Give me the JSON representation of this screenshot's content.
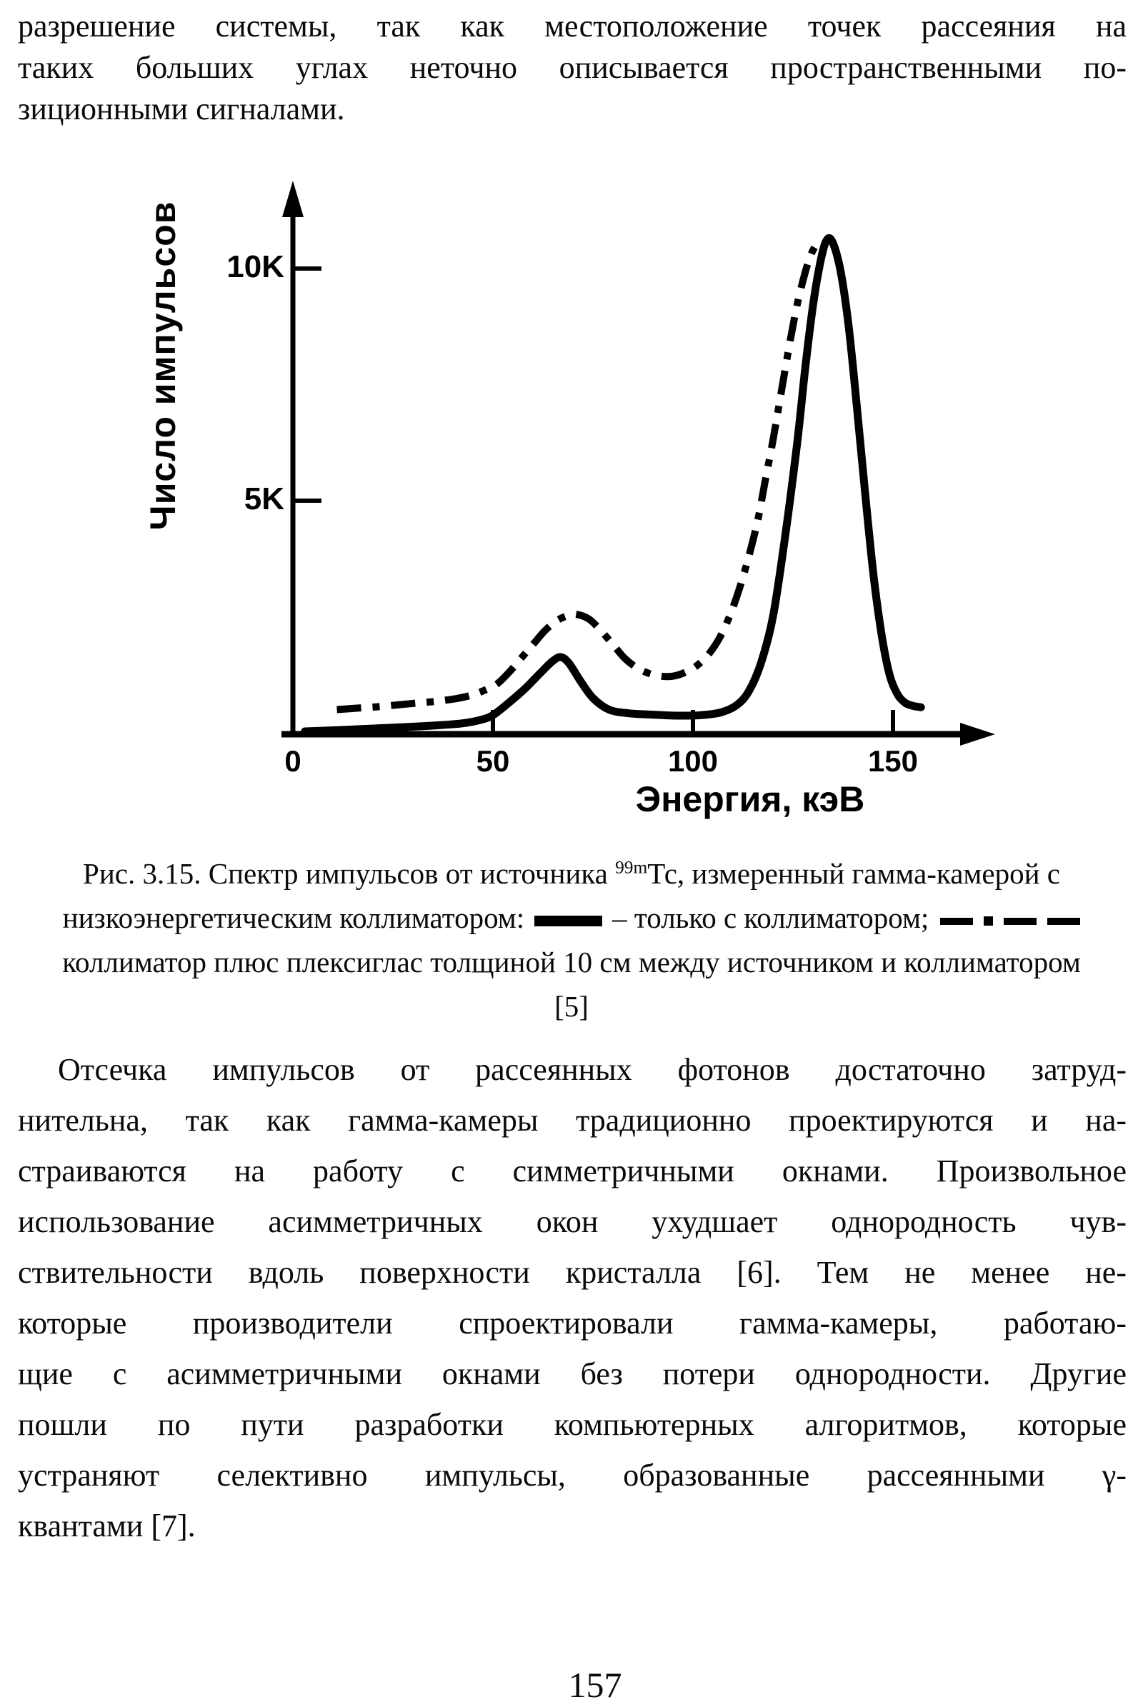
{
  "top_paragraph": {
    "lines": [
      "разрешение системы, так как местоположение точек рассеяния на",
      "таких больших углах неточно описывается пространственными по-",
      "зиционными сигналами."
    ]
  },
  "chart_data": {
    "type": "line",
    "title": "",
    "xlabel": "Энергия, кэВ",
    "ylabel": "Число импульсов",
    "xlim": [
      0,
      172
    ],
    "ylim": [
      0,
      11.5
    ],
    "grid": false,
    "legend_position": "in-caption",
    "x_ticks": [
      {
        "value": 0,
        "label": "0"
      },
      {
        "value": 50,
        "label": "50"
      },
      {
        "value": 100,
        "label": "100"
      },
      {
        "value": 150,
        "label": "150"
      }
    ],
    "y_ticks": [
      {
        "value": 5,
        "label": "5K"
      },
      {
        "value": 10,
        "label": "10K"
      }
    ],
    "units": {
      "x": "кэВ",
      "y": "counts (K = thousands)"
    },
    "series": [
      {
        "name": "только с коллиматором",
        "style": "solid",
        "points": [
          [
            3,
            0.03
          ],
          [
            12,
            0.06
          ],
          [
            22,
            0.1
          ],
          [
            32,
            0.14
          ],
          [
            42,
            0.2
          ],
          [
            47,
            0.28
          ],
          [
            50,
            0.38
          ],
          [
            54,
            0.65
          ],
          [
            58,
            0.95
          ],
          [
            62,
            1.3
          ],
          [
            65,
            1.55
          ],
          [
            67,
            1.63
          ],
          [
            69,
            1.5
          ],
          [
            72,
            1.1
          ],
          [
            75,
            0.75
          ],
          [
            79,
            0.5
          ],
          [
            84,
            0.42
          ],
          [
            90,
            0.39
          ],
          [
            96,
            0.37
          ],
          [
            102,
            0.38
          ],
          [
            107,
            0.44
          ],
          [
            111,
            0.6
          ],
          [
            114,
            0.9
          ],
          [
            117,
            1.5
          ],
          [
            120,
            2.5
          ],
          [
            123,
            4.2
          ],
          [
            126,
            6.2
          ],
          [
            128,
            7.8
          ],
          [
            130,
            9.2
          ],
          [
            132,
            10.2
          ],
          [
            133.5,
            10.62
          ],
          [
            135,
            10.55
          ],
          [
            137,
            9.9
          ],
          [
            139,
            8.7
          ],
          [
            141,
            7.0
          ],
          [
            143,
            5.2
          ],
          [
            145,
            3.5
          ],
          [
            147,
            2.2
          ],
          [
            149,
            1.3
          ],
          [
            151,
            0.85
          ],
          [
            153,
            0.65
          ],
          [
            155,
            0.58
          ],
          [
            157,
            0.55
          ]
        ]
      },
      {
        "name": "коллиматор плюс плексиглас толщиной 10 см между источником и коллиматором",
        "style": "dash-dot",
        "points": [
          [
            11,
            0.5
          ],
          [
            16,
            0.53
          ],
          [
            21,
            0.56
          ],
          [
            26,
            0.6
          ],
          [
            31,
            0.64
          ],
          [
            36,
            0.68
          ],
          [
            41,
            0.74
          ],
          [
            45,
            0.82
          ],
          [
            48,
            0.92
          ],
          [
            51,
            1.05
          ],
          [
            54,
            1.3
          ],
          [
            57,
            1.6
          ],
          [
            60,
            1.9
          ],
          [
            63,
            2.2
          ],
          [
            66,
            2.42
          ],
          [
            69,
            2.53
          ],
          [
            71,
            2.55
          ],
          [
            74,
            2.45
          ],
          [
            77,
            2.2
          ],
          [
            80,
            1.9
          ],
          [
            83,
            1.6
          ],
          [
            86,
            1.4
          ],
          [
            89,
            1.28
          ],
          [
            92,
            1.22
          ],
          [
            95,
            1.22
          ],
          [
            98,
            1.3
          ],
          [
            101,
            1.45
          ],
          [
            104,
            1.7
          ],
          [
            107,
            2.1
          ],
          [
            110,
            2.7
          ],
          [
            113,
            3.5
          ],
          [
            116,
            4.5
          ],
          [
            118,
            5.4
          ],
          [
            120,
            6.3
          ],
          [
            122,
            7.3
          ],
          [
            124,
            8.3
          ],
          [
            126,
            9.2
          ],
          [
            128,
            9.9
          ],
          [
            129.5,
            10.3
          ],
          [
            131,
            10.55
          ]
        ]
      }
    ]
  },
  "caption": {
    "line1_pre": "Рис. 3.15. Спектр импульсов от источника ",
    "line1_sup": "99m",
    "line1_post": "Тс,  измеренный гамма-камерой с",
    "line2_pre": "низкоэнергетическим коллиматором:",
    "line2_mid": "– только с коллиматором;",
    "line3": "коллиматор плюс плексиглас толщиной 10 см между источником и коллиматором",
    "line4": "[5]"
  },
  "body_paragraph": {
    "lines": [
      "Отсечка импульсов от рассеянных фотонов достаточно затруд-",
      "нительна, так как гамма-камеры традиционно проектируются и на-",
      "страиваются на работу с симметричными окнами. Произвольное",
      "использование асимметричных окон ухудшает однородность чув-",
      "ствительности вдоль поверхности кристалла [6]. Тем не менее не-",
      "которые производители спроектировали гамма-камеры, работаю-",
      "щие с асимметричными окнами без потери однородности.  Другие",
      "пошли по пути разработки компьютерных алгоритмов, которые",
      "устраняют селективно импульсы, образованные рассеянными γ-",
      "квантами [7]."
    ]
  },
  "page_number": "157",
  "colors": {
    "ink": "#000000",
    "paper": "#ffffff"
  }
}
